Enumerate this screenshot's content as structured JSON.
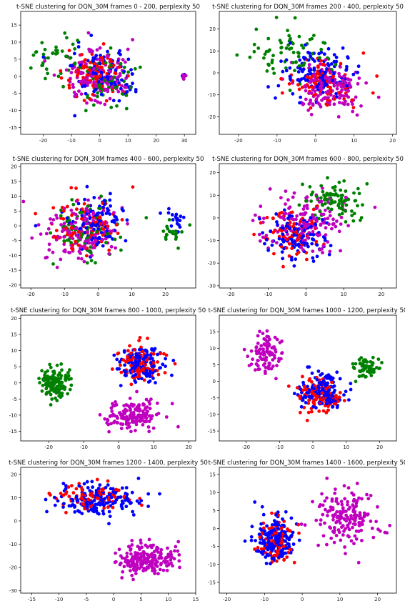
{
  "figure": {
    "background": "#ffffff"
  },
  "colors": {
    "red": "#ff0000",
    "green": "#008000",
    "blue": "#0000ff",
    "magenta": "#bf00bf"
  },
  "chart_data": [
    {
      "type": "scatter",
      "title": "t-SNE clustering for DQN_30M frames 0 - 200, perplexity 50",
      "xlabel": "",
      "ylabel": "",
      "xlim": [
        -28,
        34
      ],
      "ylim": [
        -17,
        19
      ],
      "xticks": [
        -20,
        -10,
        0,
        10,
        20,
        30
      ],
      "yticks": [
        -15,
        -10,
        -5,
        0,
        5,
        10,
        15
      ],
      "grid": false,
      "clusters": [
        {
          "color": "red",
          "cx": -2,
          "cy": 0,
          "sx": 10,
          "sy": 7,
          "n": 95
        },
        {
          "color": "green",
          "cx": -14,
          "cy": 5,
          "sx": 8,
          "sy": 7,
          "n": 40
        },
        {
          "color": "green",
          "cx": 4,
          "cy": -2,
          "sx": 9,
          "sy": 7,
          "n": 55
        },
        {
          "color": "blue",
          "cx": 2,
          "cy": 0,
          "sx": 10,
          "sy": 7,
          "n": 95
        },
        {
          "color": "magenta",
          "cx": -2,
          "cy": 0,
          "sx": 10,
          "sy": 7,
          "n": 140
        },
        {
          "color": "blue",
          "cx": 30,
          "cy": 0,
          "sx": 0.6,
          "sy": 0.6,
          "n": 6
        },
        {
          "color": "magenta",
          "cx": 30,
          "cy": 0,
          "sx": 0.6,
          "sy": 0.6,
          "n": 8
        }
      ]
    },
    {
      "type": "scatter",
      "title": "t-SNE clustering for DQN_30M frames 200 - 400, perplexity 50",
      "xlabel": "",
      "ylabel": "",
      "xlim": [
        -25,
        21
      ],
      "ylim": [
        -28,
        28
      ],
      "xticks": [
        -20,
        -10,
        0,
        10,
        20
      ],
      "yticks": [
        -20,
        -10,
        0,
        10,
        20
      ],
      "grid": false,
      "clusters": [
        {
          "color": "red",
          "cx": 2,
          "cy": -5,
          "sx": 8,
          "sy": 9,
          "n": 85
        },
        {
          "color": "green",
          "cx": -6,
          "cy": 8,
          "sx": 9,
          "sy": 10,
          "n": 75
        },
        {
          "color": "blue",
          "cx": 0,
          "cy": 0,
          "sx": 9,
          "sy": 10,
          "n": 120
        },
        {
          "color": "magenta",
          "cx": 4,
          "cy": -6,
          "sx": 8,
          "sy": 9,
          "n": 150
        }
      ]
    },
    {
      "type": "scatter",
      "title": "t-SNE clustering for DQN_30M frames 400 - 600, perplexity 50",
      "xlabel": "",
      "ylabel": "",
      "xlim": [
        -23,
        29
      ],
      "ylim": [
        -21,
        21
      ],
      "xticks": [
        -20,
        -10,
        0,
        10,
        20
      ],
      "yticks": [
        -20,
        -15,
        -10,
        -5,
        0,
        5,
        10,
        15,
        20
      ],
      "grid": false,
      "clusters": [
        {
          "color": "red",
          "cx": -4,
          "cy": 0,
          "sx": 9,
          "sy": 8,
          "n": 95
        },
        {
          "color": "green",
          "cx": -3,
          "cy": -2,
          "sx": 10,
          "sy": 8,
          "n": 75
        },
        {
          "color": "green",
          "cx": 22,
          "cy": -2,
          "sx": 3,
          "sy": 4,
          "n": 20
        },
        {
          "color": "blue",
          "cx": -1,
          "cy": 2,
          "sx": 8,
          "sy": 8,
          "n": 110
        },
        {
          "color": "blue",
          "cx": 23,
          "cy": 1,
          "sx": 3,
          "sy": 4,
          "n": 18
        },
        {
          "color": "magenta",
          "cx": -6,
          "cy": -2,
          "sx": 10,
          "sy": 8,
          "n": 140
        }
      ]
    },
    {
      "type": "scatter",
      "title": "t-SNE clustering for DQN_30M frames 600 - 800, perplexity 50",
      "xlabel": "",
      "ylabel": "",
      "xlim": [
        -23,
        24
      ],
      "ylim": [
        -31,
        24
      ],
      "xticks": [
        -20,
        -10,
        0,
        10,
        20
      ],
      "yticks": [
        -30,
        -20,
        -10,
        0,
        10,
        20
      ],
      "grid": false,
      "clusters": [
        {
          "color": "red",
          "cx": -3,
          "cy": -6,
          "sx": 7,
          "sy": 10,
          "n": 85
        },
        {
          "color": "green",
          "cx": 8,
          "cy": 8,
          "sx": 6,
          "sy": 7,
          "n": 90
        },
        {
          "color": "blue",
          "cx": -3,
          "cy": -8,
          "sx": 7,
          "sy": 9,
          "n": 120
        },
        {
          "color": "magenta",
          "cx": 0,
          "cy": -2,
          "sx": 10,
          "sy": 12,
          "n": 150
        }
      ]
    },
    {
      "type": "scatter",
      "title": "t-SNE clustering for DQN_30M frames 800 - 1000, perplexity 50",
      "xlabel": "",
      "ylabel": "",
      "xlim": [
        -28,
        22
      ],
      "ylim": [
        -18,
        21
      ],
      "xticks": [
        -20,
        -10,
        0,
        10,
        20
      ],
      "yticks": [
        -15,
        -10,
        -5,
        0,
        5,
        10,
        15,
        20
      ],
      "grid": false,
      "clusters": [
        {
          "color": "red",
          "cx": 6,
          "cy": 6,
          "sx": 6,
          "sy": 5,
          "n": 100
        },
        {
          "color": "green",
          "cx": -18,
          "cy": 0,
          "sx": 4,
          "sy": 4,
          "n": 140
        },
        {
          "color": "blue",
          "cx": 6,
          "cy": 6,
          "sx": 6,
          "sy": 5,
          "n": 140
        },
        {
          "color": "magenta",
          "cx": 4,
          "cy": -10,
          "sx": 7,
          "sy": 3.5,
          "n": 160
        }
      ]
    },
    {
      "type": "scatter",
      "title": "t-SNE clustering for DQN_30M frames 1000 - 1200, perplexity 50",
      "xlabel": "",
      "ylabel": "",
      "xlim": [
        -28,
        25
      ],
      "ylim": [
        -18,
        20
      ],
      "xticks": [
        -20,
        -10,
        0,
        10,
        20
      ],
      "yticks": [
        -15,
        -10,
        -5,
        0,
        5,
        10,
        15
      ],
      "grid": false,
      "clusters": [
        {
          "color": "red",
          "cx": 2,
          "cy": -4,
          "sx": 6,
          "sy": 5,
          "n": 110
        },
        {
          "color": "green",
          "cx": 16,
          "cy": 4,
          "sx": 4,
          "sy": 3,
          "n": 60
        },
        {
          "color": "blue",
          "cx": 3,
          "cy": -3,
          "sx": 6,
          "sy": 5,
          "n": 150
        },
        {
          "color": "magenta",
          "cx": -14,
          "cy": 8,
          "sx": 5,
          "sy": 6,
          "n": 100
        }
      ]
    },
    {
      "type": "scatter",
      "title": "t-SNE clustering for DQN_30M frames 1200 - 1400, perplexity 50",
      "xlabel": "",
      "ylabel": "",
      "xlim": [
        -17,
        15
      ],
      "ylim": [
        -31,
        23
      ],
      "xticks": [
        -15,
        -10,
        -5,
        0,
        5,
        10,
        15
      ],
      "yticks": [
        -30,
        -20,
        -10,
        0,
        10,
        20
      ],
      "grid": false,
      "clusters": [
        {
          "color": "red",
          "cx": -3,
          "cy": 10,
          "sx": 7,
          "sy": 5,
          "n": 80
        },
        {
          "color": "blue",
          "cx": -3,
          "cy": 9,
          "sx": 7,
          "sy": 6,
          "n": 160
        },
        {
          "color": "magenta",
          "cx": 6,
          "cy": -16,
          "sx": 5,
          "sy": 6,
          "n": 200
        }
      ]
    },
    {
      "type": "scatter",
      "title": "t-SNE clustering for DQN_30M frames 1400 - 1600, perplexity 50",
      "xlabel": "",
      "ylabel": "",
      "xlim": [
        -22,
        25
      ],
      "ylim": [
        -18,
        17
      ],
      "xticks": [
        -20,
        -10,
        0,
        10,
        20
      ],
      "yticks": [
        -15,
        -10,
        -5,
        0,
        5,
        10,
        15
      ],
      "grid": false,
      "clusters": [
        {
          "color": "red",
          "cx": -7,
          "cy": -4,
          "sx": 4,
          "sy": 6,
          "n": 90
        },
        {
          "color": "blue",
          "cx": -7,
          "cy": -3,
          "sx": 5,
          "sy": 6,
          "n": 180
        },
        {
          "color": "magenta",
          "cx": 12,
          "cy": 3,
          "sx": 7,
          "sy": 7,
          "n": 170
        }
      ]
    }
  ]
}
